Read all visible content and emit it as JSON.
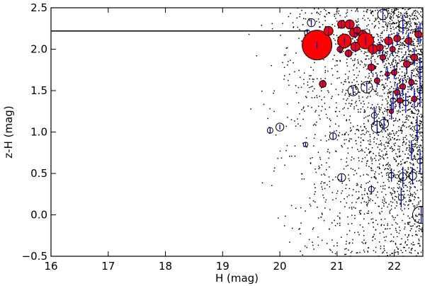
{
  "chart_data": {
    "type": "scatter",
    "title": "",
    "xlabel": "H (mag)",
    "ylabel": "z-H (mag)",
    "xlim": [
      16,
      22.5
    ],
    "ylim": [
      -0.5,
      2.5
    ],
    "xticks": [
      "16",
      "17",
      "18",
      "19",
      "20",
      "21",
      "22"
    ],
    "yticks": [
      "2.5",
      "2.0",
      "1.5",
      "1.0",
      "0.5",
      "0.0",
      "−0.5"
    ],
    "grid": false,
    "limit_line": {
      "y": 2.22,
      "x_start": 16,
      "x_end": 20.5
    },
    "background_points": {
      "description_free": true,
      "count": 2600,
      "x_min": 19.3,
      "x_max": 22.5,
      "y_min": -0.5,
      "y_max": 2.5,
      "color": "#000000"
    },
    "open_circles": [
      {
        "x": 20.55,
        "y": 2.32,
        "r": 0.07,
        "err": 0.04
      },
      {
        "x": 20.48,
        "y": 2.2,
        "r": 0.05,
        "err": 0.04
      },
      {
        "x": 20.0,
        "y": 1.06,
        "r": 0.07,
        "err": 0.03
      },
      {
        "x": 19.83,
        "y": 1.02,
        "r": 0.05,
        "err": 0.03
      },
      {
        "x": 20.45,
        "y": 0.85,
        "r": 0.04,
        "err": 0.03
      },
      {
        "x": 20.93,
        "y": 0.95,
        "r": 0.06,
        "err": 0.04
      },
      {
        "x": 21.08,
        "y": 0.45,
        "r": 0.07,
        "err": 0.04
      },
      {
        "x": 21.28,
        "y": 1.5,
        "r": 0.09,
        "err": 0.05
      },
      {
        "x": 21.52,
        "y": 1.54,
        "r": 0.1,
        "err": 0.06
      },
      {
        "x": 21.7,
        "y": 1.06,
        "r": 0.1,
        "err": 0.08
      },
      {
        "x": 21.82,
        "y": 1.1,
        "r": 0.08,
        "err": 0.08
      },
      {
        "x": 21.6,
        "y": 0.31,
        "r": 0.05,
        "err": 0.05
      },
      {
        "x": 21.95,
        "y": 0.48,
        "r": 0.05,
        "err": 0.08
      },
      {
        "x": 22.15,
        "y": 0.46,
        "r": 0.07,
        "err": 0.12
      },
      {
        "x": 22.32,
        "y": 0.47,
        "r": 0.07,
        "err": 0.1
      },
      {
        "x": 22.12,
        "y": 0.21,
        "r": 0.05,
        "err": 0.12
      },
      {
        "x": 22.47,
        "y": 0.0,
        "r": 0.15,
        "err": 0.1
      },
      {
        "x": 21.8,
        "y": 2.42,
        "r": 0.09,
        "err": 0.08
      },
      {
        "x": 22.15,
        "y": 2.3,
        "r": 0.07,
        "err": 0.12
      },
      {
        "x": 22.45,
        "y": 2.2,
        "r": 0.08,
        "err": 0.12
      },
      {
        "x": 21.65,
        "y": 1.2,
        "r": 0.05,
        "err": 0.1
      },
      {
        "x": 22.2,
        "y": 1.35,
        "r": 0.05,
        "err": 0.12
      },
      {
        "x": 22.4,
        "y": 1.05,
        "r": 0.05,
        "err": 0.14
      },
      {
        "x": 22.45,
        "y": 0.65,
        "r": 0.05,
        "err": 0.14
      },
      {
        "x": 22.3,
        "y": 0.78,
        "r": 0.04,
        "err": 0.12
      },
      {
        "x": 21.98,
        "y": 1.38,
        "r": 0.05,
        "err": 0.1
      },
      {
        "x": 22.45,
        "y": 1.5,
        "r": 0.05,
        "err": 0.2
      },
      {
        "x": 22.45,
        "y": 1.75,
        "r": 0.05,
        "err": 0.15
      }
    ],
    "red_circles": [
      {
        "x": 20.65,
        "y": 2.05,
        "r": 0.26,
        "err": 0.04
      },
      {
        "x": 20.75,
        "y": 1.58,
        "r": 0.06,
        "err": 0.04
      },
      {
        "x": 20.85,
        "y": 2.22,
        "r": 0.08,
        "err": 0.05
      },
      {
        "x": 21.08,
        "y": 2.3,
        "r": 0.07,
        "err": 0.05
      },
      {
        "x": 21.13,
        "y": 2.1,
        "r": 0.12,
        "err": 0.05
      },
      {
        "x": 21.22,
        "y": 2.3,
        "r": 0.08,
        "err": 0.06
      },
      {
        "x": 21.3,
        "y": 2.2,
        "r": 0.08,
        "err": 0.06
      },
      {
        "x": 21.45,
        "y": 2.18,
        "r": 0.07,
        "err": 0.06
      },
      {
        "x": 21.5,
        "y": 2.1,
        "r": 0.14,
        "err": 0.06
      },
      {
        "x": 21.32,
        "y": 2.03,
        "r": 0.08,
        "err": 0.06
      },
      {
        "x": 21.63,
        "y": 2.0,
        "r": 0.08,
        "err": 0.06
      },
      {
        "x": 21.75,
        "y": 2.02,
        "r": 0.06,
        "err": 0.07
      },
      {
        "x": 21.9,
        "y": 2.1,
        "r": 0.07,
        "err": 0.08
      },
      {
        "x": 22.05,
        "y": 2.13,
        "r": 0.06,
        "err": 0.08
      },
      {
        "x": 21.97,
        "y": 2.0,
        "r": 0.05,
        "err": 0.08
      },
      {
        "x": 22.25,
        "y": 2.1,
        "r": 0.06,
        "err": 0.1
      },
      {
        "x": 22.42,
        "y": 2.18,
        "r": 0.06,
        "err": 0.1
      },
      {
        "x": 21.6,
        "y": 1.78,
        "r": 0.06,
        "err": 0.07
      },
      {
        "x": 21.8,
        "y": 1.9,
        "r": 0.05,
        "err": 0.07
      },
      {
        "x": 22.0,
        "y": 1.72,
        "r": 0.05,
        "err": 0.08
      },
      {
        "x": 22.22,
        "y": 1.82,
        "r": 0.06,
        "err": 0.1
      },
      {
        "x": 22.35,
        "y": 1.9,
        "r": 0.06,
        "err": 0.1
      },
      {
        "x": 21.88,
        "y": 1.7,
        "r": 0.04,
        "err": 0.08
      },
      {
        "x": 21.7,
        "y": 1.62,
        "r": 0.05,
        "err": 0.08
      },
      {
        "x": 22.15,
        "y": 1.55,
        "r": 0.05,
        "err": 0.1
      },
      {
        "x": 22.05,
        "y": 1.48,
        "r": 0.05,
        "err": 0.1
      },
      {
        "x": 22.3,
        "y": 1.6,
        "r": 0.05,
        "err": 0.1
      },
      {
        "x": 21.95,
        "y": 1.25,
        "r": 0.04,
        "err": 0.1
      },
      {
        "x": 22.1,
        "y": 1.38,
        "r": 0.05,
        "err": 0.1
      },
      {
        "x": 22.35,
        "y": 1.4,
        "r": 0.05,
        "err": 0.12
      },
      {
        "x": 21.35,
        "y": 2.23,
        "r": 0.06,
        "err": 0.06
      },
      {
        "x": 21.2,
        "y": 1.95,
        "r": 0.06,
        "err": 0.05
      },
      {
        "x": 21.05,
        "y": 2.0,
        "r": 0.05,
        "err": 0.05
      }
    ],
    "colors": {
      "points": "#000000",
      "red_fill": "#ff0000",
      "error_bar": "#0000cc",
      "line": "#000000"
    }
  }
}
